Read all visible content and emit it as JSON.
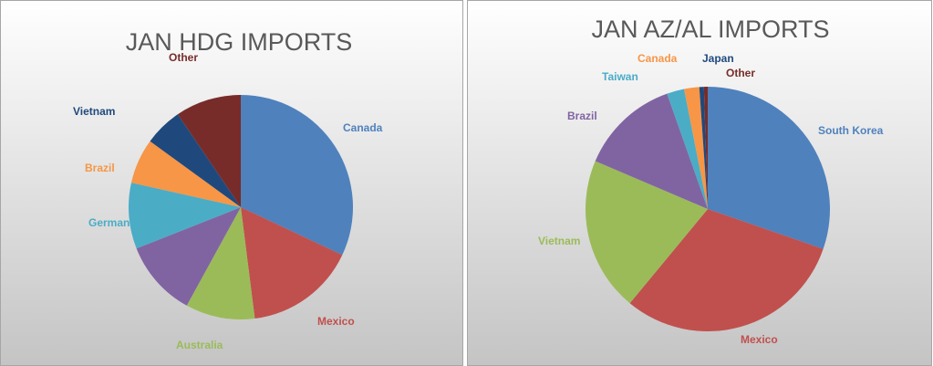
{
  "chart_data": [
    {
      "type": "pie",
      "title": "JAN HDG IMPORTS",
      "categories": [
        "Canada",
        "Mexico",
        "Australia",
        null,
        "German",
        "Brazil",
        "Vietnam",
        "Other"
      ],
      "values": [
        32,
        16,
        10,
        11,
        9.5,
        6.5,
        5.5,
        9.5
      ],
      "colors": [
        "#4f81bd",
        "#c0504d",
        "#9bbb59",
        "#8064a2",
        "#4bacc6",
        "#f79646",
        "#1f497d",
        "#772c2a"
      ]
    },
    {
      "type": "pie",
      "title": "JAN AZ/AL IMPORTS",
      "categories": [
        "South Korea",
        "Mexico",
        "Vietnam",
        "Brazil",
        "Taiwan",
        "Canada",
        "Japan",
        "Other"
      ],
      "values": [
        30.3,
        30.7,
        20.4,
        13.2,
        2.3,
        2,
        0.6,
        0.5
      ],
      "colors": [
        "#4f81bd",
        "#c0504d",
        "#9bbb59",
        "#8064a2",
        "#4bacc6",
        "#f79646",
        "#1f497d",
        "#772c2a"
      ]
    }
  ]
}
